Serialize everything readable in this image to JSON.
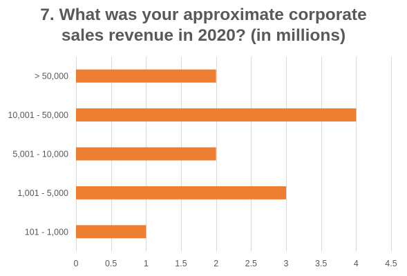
{
  "chart_data": {
    "type": "bar",
    "orientation": "horizontal",
    "title_lines": [
      "7. What was your approximate corporate",
      "sales revenue in 2020? (in millions)"
    ],
    "categories": [
      "> 50,000",
      "10,001 - 50,000",
      "5,001 - 10,000",
      "1,001 - 5,000",
      "101 - 1,000"
    ],
    "values": [
      2,
      4,
      2,
      3,
      1
    ],
    "xticks": [
      "0",
      "0.5",
      "1",
      "1.5",
      "2",
      "2.5",
      "3",
      "3.5",
      "4",
      "4.5"
    ],
    "xlim": [
      0,
      4.5
    ],
    "grid": true,
    "legend": "none",
    "colors": {
      "bar": "#ed7d31",
      "grid": "#d9d9d9",
      "text": "#595959",
      "title": "#595959"
    }
  }
}
